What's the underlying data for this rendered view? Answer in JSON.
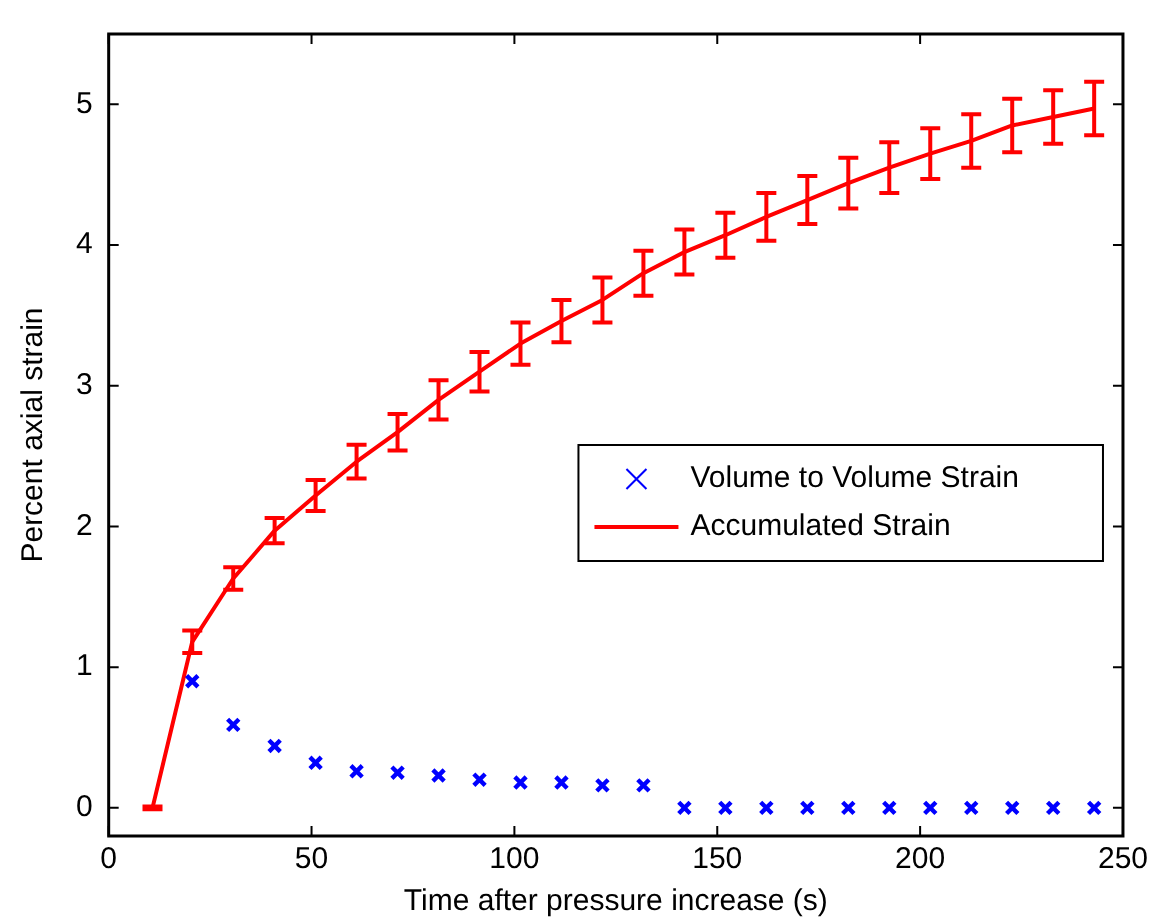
{
  "chart_data": {
    "type": "line",
    "xlabel": "Time after pressure increase (s)",
    "ylabel": "Percent axial strain",
    "xlim": [
      0,
      250
    ],
    "xticks": [
      0,
      50,
      100,
      150,
      200,
      250
    ],
    "ylim": [
      -0.2,
      5.5
    ],
    "yticks": [
      0,
      1,
      2,
      3,
      4,
      5
    ],
    "grid": false,
    "legend": "right",
    "line_style": "solid",
    "series": [
      {
        "name": "Volume to Volume Strain",
        "type": "scatter",
        "marker": "cross",
        "color": "#0000ff",
        "x": [
          20.6,
          30.7,
          40.9,
          51.0,
          61.1,
          71.2,
          81.3,
          91.4,
          101.5,
          111.6,
          121.7,
          131.8,
          141.9,
          152.0,
          162.1,
          172.2,
          182.3,
          192.4,
          202.5,
          212.6,
          222.7,
          232.8,
          242.9
        ],
        "values": [
          0.9,
          0.59,
          0.44,
          0.32,
          0.26,
          0.25,
          0.23,
          0.2,
          0.18,
          0.18,
          0.16,
          0.16,
          0,
          0,
          0,
          0,
          0,
          0,
          0,
          0,
          0,
          0,
          0
        ]
      },
      {
        "name": "Accumulated Strain",
        "marker": "none",
        "color": "#ff0000",
        "x": [
          10.8,
          20.6,
          30.7,
          40.9,
          51.0,
          61.1,
          71.2,
          81.3,
          91.4,
          101.5,
          111.6,
          121.7,
          131.8,
          141.9,
          152.0,
          162.1,
          172.2,
          182.3,
          192.4,
          202.5,
          212.6,
          222.7,
          232.8,
          242.9
        ],
        "values": [
          0,
          1.18,
          1.63,
          1.97,
          2.22,
          2.46,
          2.67,
          2.9,
          3.1,
          3.3,
          3.46,
          3.61,
          3.8,
          3.95,
          4.07,
          4.2,
          4.32,
          4.44,
          4.55,
          4.65,
          4.74,
          4.85,
          4.91,
          4.97
        ],
        "errors": [
          0.01,
          0.08,
          0.08,
          0.09,
          0.11,
          0.12,
          0.13,
          0.14,
          0.14,
          0.15,
          0.15,
          0.16,
          0.16,
          0.16,
          0.16,
          0.17,
          0.17,
          0.18,
          0.18,
          0.18,
          0.19,
          0.19,
          0.19,
          0.19
        ]
      }
    ]
  }
}
